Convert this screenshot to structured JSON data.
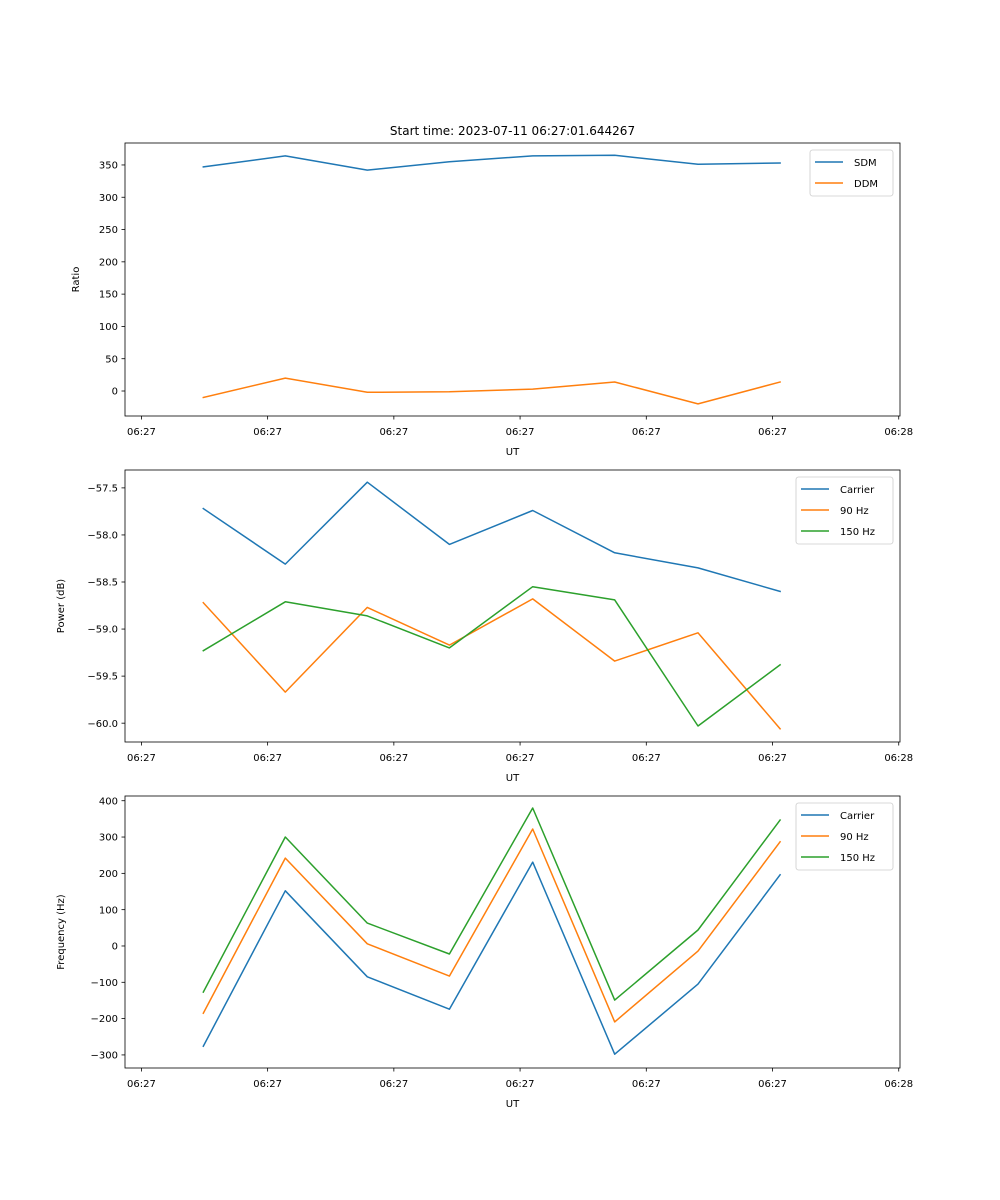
{
  "figure": {
    "title": "Start time: 2023-07-11 06:27:01.644267"
  },
  "chart_data": [
    {
      "type": "line",
      "title": "Start time: 2023-07-11 06:27:01.644267",
      "xlabel": "UT",
      "ylabel": "Ratio",
      "x_unit": "seconds after 06:27:00",
      "x": [
        4.9,
        11.4,
        17.9,
        24.4,
        31.0,
        37.5,
        44.1,
        50.6
      ],
      "xlim": [
        -1.3,
        60.1
      ],
      "xticks": [
        0,
        10,
        20,
        30,
        40,
        50,
        60
      ],
      "xtick_labels": [
        "06:27",
        "06:27",
        "06:27",
        "06:27",
        "06:27",
        "06:27",
        "06:28"
      ],
      "ylim": [
        -38.7,
        384
      ],
      "yticks": [
        0,
        50,
        100,
        150,
        200,
        250,
        300,
        350
      ],
      "ytick_labels": [
        "0",
        "50",
        "100",
        "150",
        "200",
        "250",
        "300",
        "350"
      ],
      "grid": false,
      "legend": "top-right",
      "series": [
        {
          "name": "SDM",
          "color": "#1f77b4",
          "values": [
            347,
            364,
            342,
            355,
            364,
            365,
            351,
            353
          ]
        },
        {
          "name": "DDM",
          "color": "#ff7f0e",
          "values": [
            -10,
            20,
            -2,
            -1,
            3,
            14,
            -20,
            14
          ]
        }
      ]
    },
    {
      "type": "line",
      "title": "",
      "xlabel": "UT",
      "ylabel": "Power (dB)",
      "x_unit": "seconds after 06:27:00",
      "x": [
        4.9,
        11.4,
        17.9,
        24.4,
        31.0,
        37.5,
        44.1,
        50.6
      ],
      "xlim": [
        -1.3,
        60.1
      ],
      "xticks": [
        0,
        10,
        20,
        30,
        40,
        50,
        60
      ],
      "xtick_labels": [
        "06:27",
        "06:27",
        "06:27",
        "06:27",
        "06:27",
        "06:27",
        "06:28"
      ],
      "ylim": [
        -60.2,
        -57.31
      ],
      "yticks": [
        -60.0,
        -59.5,
        -59.0,
        -58.5,
        -58.0,
        -57.5
      ],
      "ytick_labels": [
        "−60.0",
        "−59.5",
        "−59.0",
        "−58.5",
        "−58.0",
        "−57.5"
      ],
      "grid": false,
      "legend": "top-right",
      "series": [
        {
          "name": "Carrier",
          "color": "#1f77b4",
          "values": [
            -57.72,
            -58.31,
            -57.44,
            -58.1,
            -57.74,
            -58.19,
            -58.35,
            -58.6
          ]
        },
        {
          "name": "90 Hz",
          "color": "#ff7f0e",
          "values": [
            -58.72,
            -59.67,
            -58.77,
            -59.17,
            -58.68,
            -59.34,
            -59.04,
            -60.06
          ]
        },
        {
          "name": "150 Hz",
          "color": "#2ca02c",
          "values": [
            -59.23,
            -58.71,
            -58.86,
            -59.2,
            -58.55,
            -58.69,
            -60.03,
            -59.38
          ]
        }
      ]
    },
    {
      "type": "line",
      "title": "",
      "xlabel": "UT",
      "ylabel": "Frequency (Hz)",
      "x_unit": "seconds after 06:27:00",
      "x": [
        4.9,
        11.4,
        17.9,
        24.4,
        31.0,
        37.5,
        44.1,
        50.6
      ],
      "xlim": [
        -1.3,
        60.1
      ],
      "xticks": [
        0,
        10,
        20,
        30,
        40,
        50,
        60
      ],
      "xtick_labels": [
        "06:27",
        "06:27",
        "06:27",
        "06:27",
        "06:27",
        "06:27",
        "06:28"
      ],
      "ylim": [
        -336,
        413
      ],
      "yticks": [
        -300,
        -200,
        -100,
        0,
        100,
        200,
        300,
        400
      ],
      "ytick_labels": [
        "−300",
        "−200",
        "−100",
        "0",
        "100",
        "200",
        "300",
        "400"
      ],
      "grid": false,
      "legend": "top-right",
      "series": [
        {
          "name": "Carrier",
          "color": "#1f77b4",
          "values": [
            -276,
            152,
            -85,
            -174,
            231,
            -298,
            -105,
            196
          ]
        },
        {
          "name": "90 Hz",
          "color": "#ff7f0e",
          "values": [
            -185,
            242,
            6,
            -83,
            322,
            -209,
            -14,
            287
          ]
        },
        {
          "name": "150 Hz",
          "color": "#2ca02c",
          "values": [
            -127,
            300,
            63,
            -22,
            380,
            -149,
            44,
            347
          ]
        }
      ]
    }
  ]
}
